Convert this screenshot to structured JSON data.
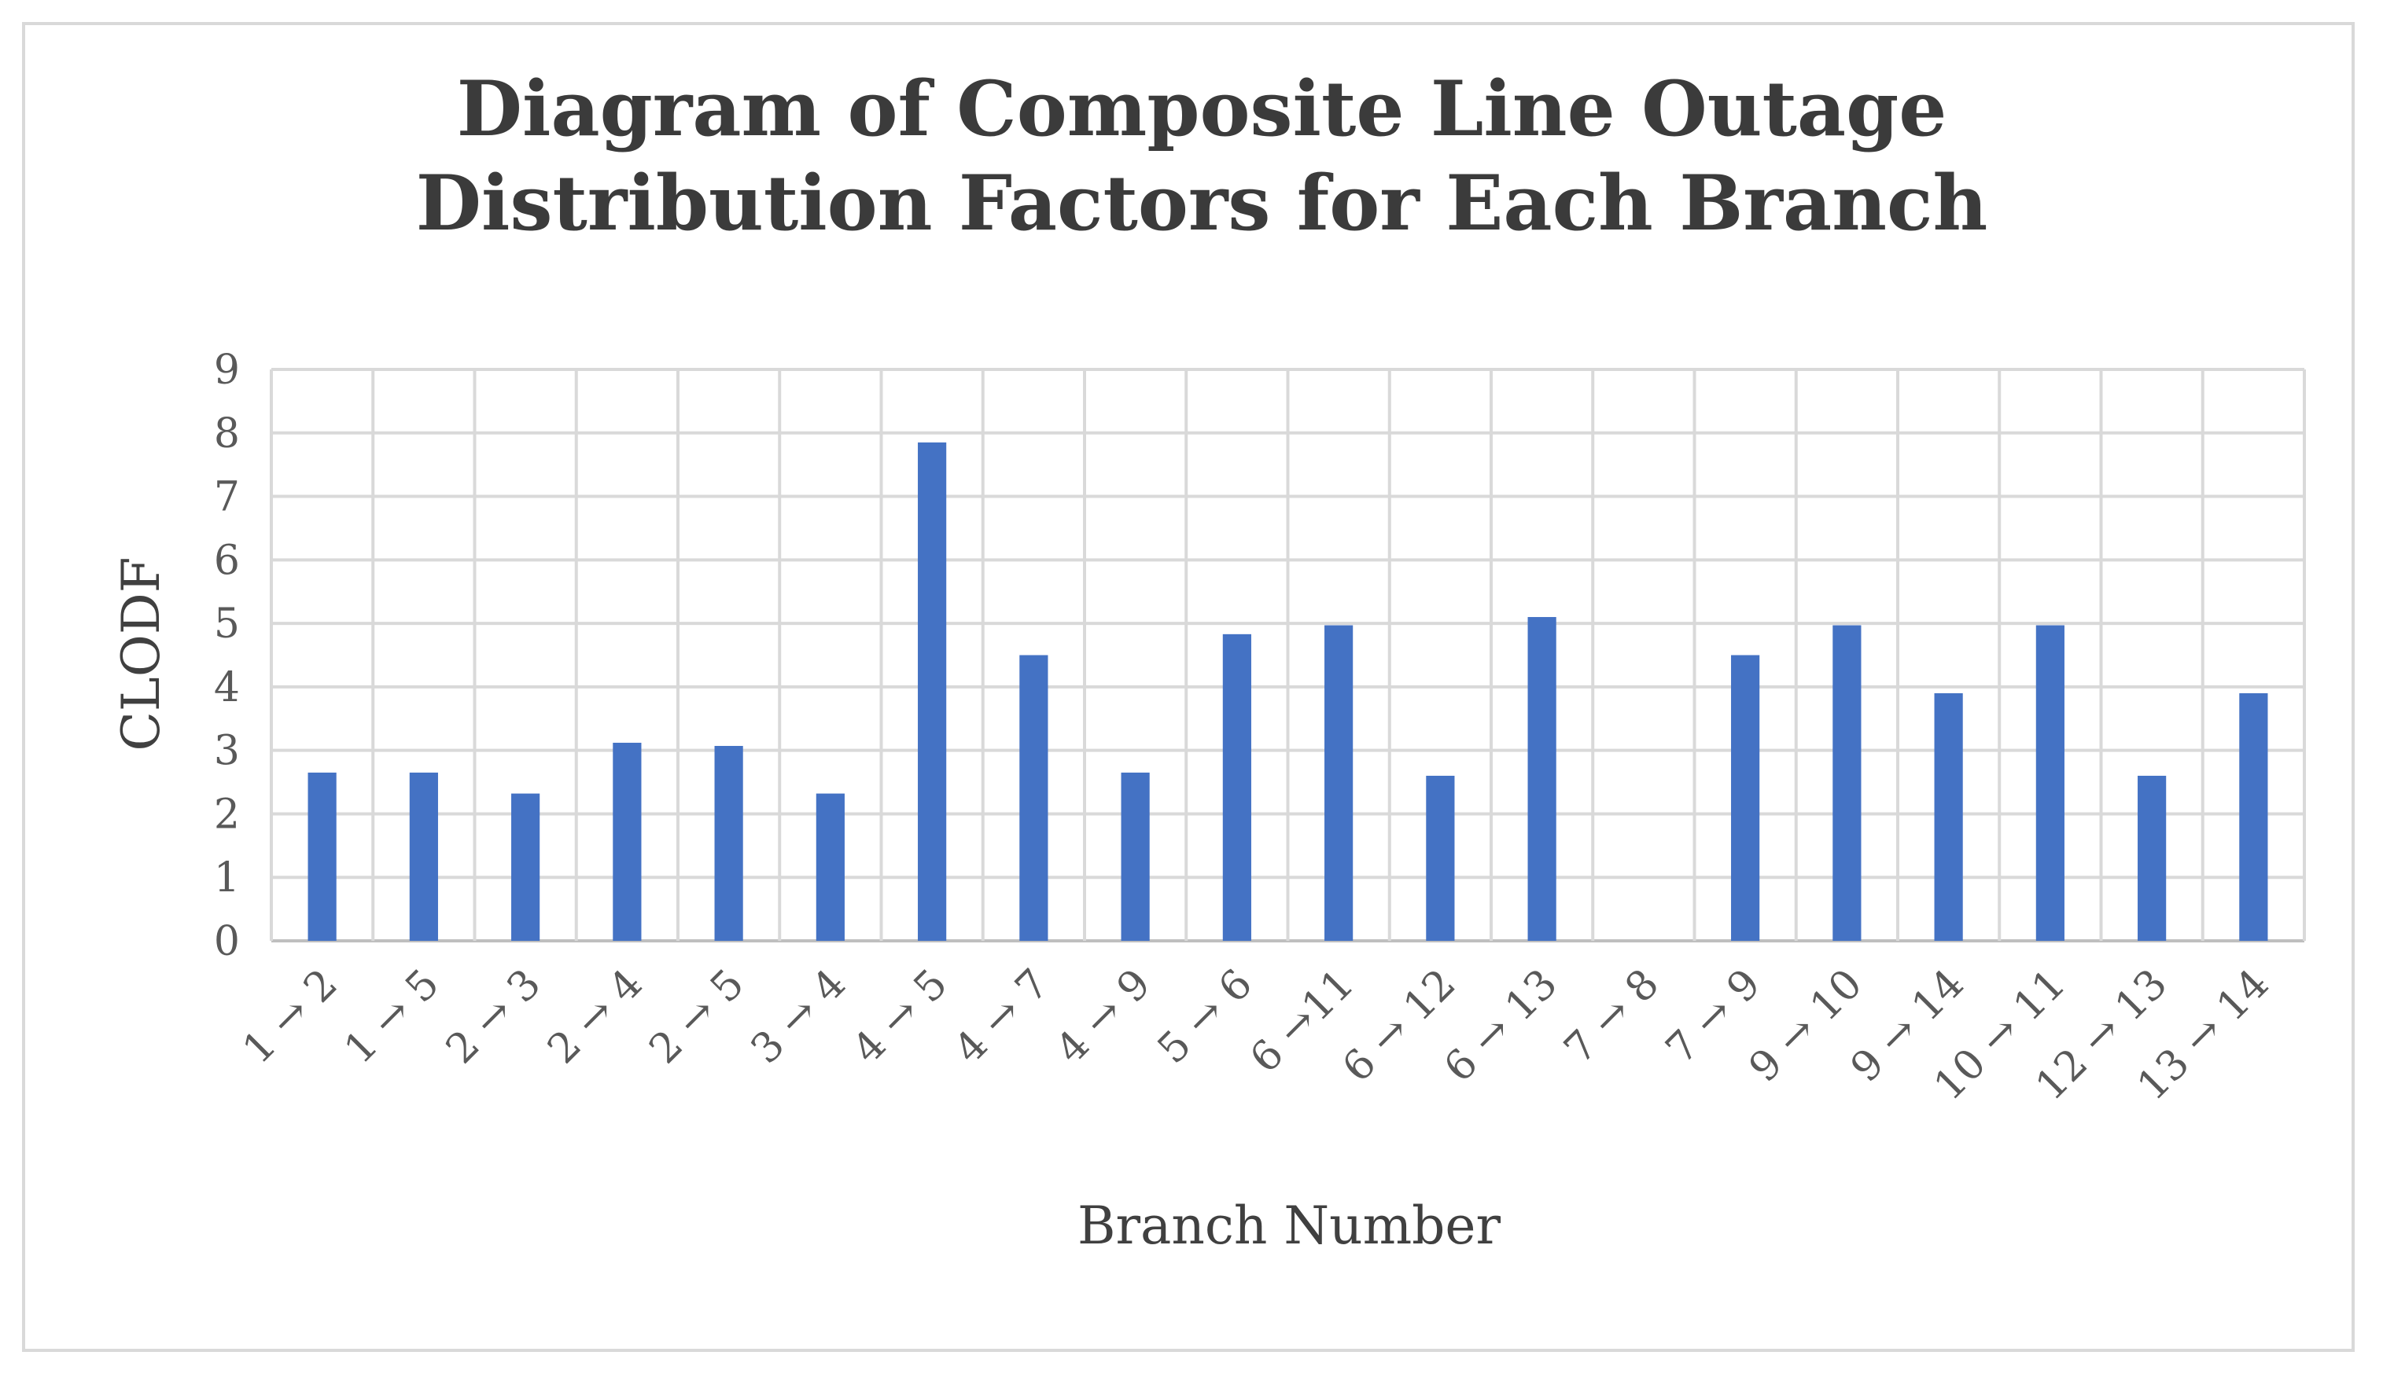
{
  "colors": {
    "bar": "#4472c4",
    "grid": "#d9d9d9",
    "axis": "#bfbfbf",
    "title": "#3b3b3b",
    "text": "#595959"
  },
  "chart_data": {
    "type": "bar",
    "title_lines": [
      "Diagram of Composite Line Outage",
      "Distribution Factors for Each Branch"
    ],
    "xlabel": "Branch Number",
    "ylabel": "CLODF",
    "ylim": [
      0,
      9
    ],
    "yticks": [
      "0",
      "1",
      "2",
      "3",
      "4",
      "5",
      "6",
      "7",
      "8",
      "9"
    ],
    "grid": true,
    "legend": "none",
    "categories": [
      "1 → 2",
      "1 → 5",
      "2 → 3",
      "2 → 4",
      "2 → 5",
      "3 → 4",
      "4 → 5",
      "4 → 7",
      "4 → 9",
      "5 → 6",
      "6 →11",
      "6 → 12",
      "6 → 13",
      "7 → 8",
      "7 → 9",
      "9 → 10",
      "9 → 14",
      "10 → 11",
      "12 → 13",
      "13 → 14"
    ],
    "values": [
      2.65,
      2.65,
      2.32,
      3.12,
      3.07,
      2.32,
      7.85,
      4.5,
      2.65,
      4.83,
      4.97,
      2.6,
      5.1,
      0,
      4.5,
      4.97,
      3.9,
      4.97,
      2.6,
      3.9
    ]
  }
}
